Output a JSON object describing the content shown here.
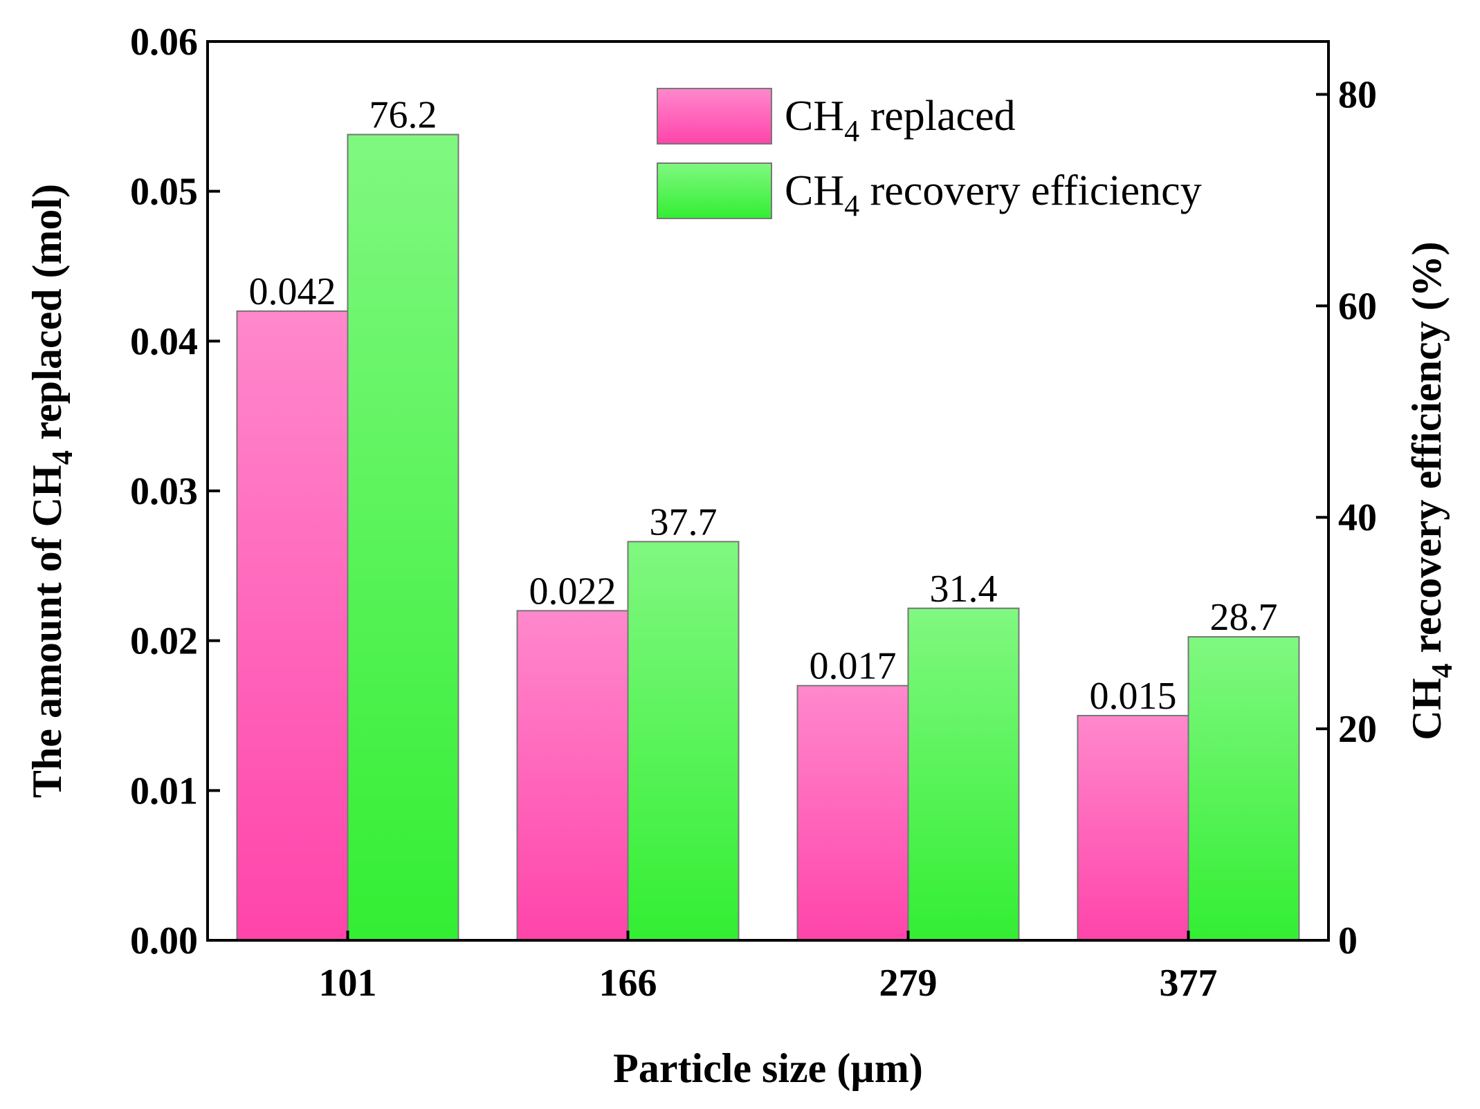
{
  "chart_data": {
    "type": "bar",
    "xlabel": "Particle size (µm)",
    "categories": [
      "101",
      "166",
      "279",
      "377"
    ],
    "left_axis": {
      "label_prefix": "The amount of CH",
      "label_subscript": "4",
      "label_suffix": " replaced (mol)",
      "ylim": [
        0,
        0.06
      ],
      "ticks": [
        "0.00",
        "0.01",
        "0.02",
        "0.03",
        "0.04",
        "0.05",
        "0.06"
      ]
    },
    "right_axis": {
      "label_prefix": "CH",
      "label_subscript": "4",
      "label_suffix": " recovery efficiency (%)",
      "ylim": [
        0,
        85
      ],
      "ticks": [
        "0",
        "20",
        "40",
        "60",
        "80"
      ]
    },
    "series": [
      {
        "name": "CH4 replaced",
        "legend_prefix": "CH",
        "legend_subscript": "4",
        "legend_suffix": " replaced",
        "axis": "left",
        "values": [
          0.042,
          0.022,
          0.017,
          0.015
        ],
        "data_labels": [
          "0.042",
          "0.022",
          "0.017",
          "0.015"
        ],
        "color_top": "#ff88cc",
        "color_bottom": "#ff44aa"
      },
      {
        "name": "CH4 recovery efficiency",
        "legend_prefix": "CH",
        "legend_subscript": "4",
        "legend_suffix": " recovery efficiency",
        "axis": "right",
        "values": [
          76.2,
          37.7,
          31.4,
          28.7
        ],
        "data_labels": [
          "76.2",
          "37.7",
          "31.4",
          "28.7"
        ],
        "color_top": "#80f880",
        "color_bottom": "#33ee33"
      }
    ],
    "legend_position": "top-right"
  }
}
